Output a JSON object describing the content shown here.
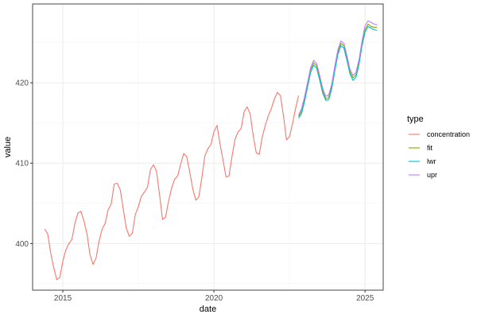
{
  "chart_data": {
    "type": "line",
    "title": "",
    "xlabel": "date",
    "ylabel": "value",
    "xlim": [
      2014.0,
      2025.6
    ],
    "ylim": [
      394.2,
      429.8
    ],
    "x_ticks": [
      2015,
      2020,
      2025
    ],
    "x_tick_labels": [
      "2015",
      "2020",
      "2025"
    ],
    "y_ticks": [
      400,
      410,
      420
    ],
    "y_tick_labels": [
      "400",
      "410",
      "420"
    ],
    "grid": true,
    "legend": {
      "title": "type",
      "position": "right"
    },
    "series": [
      {
        "name": "concentration",
        "color": "#F8766D",
        "x": [
          2014.4,
          2014.5,
          2014.6,
          2014.7,
          2014.8,
          2014.9,
          2015.0,
          2015.1,
          2015.2,
          2015.3,
          2015.4,
          2015.5,
          2015.6,
          2015.7,
          2015.8,
          2015.9,
          2016.0,
          2016.1,
          2016.2,
          2016.3,
          2016.4,
          2016.5,
          2016.6,
          2016.7,
          2016.8,
          2016.9,
          2017.0,
          2017.1,
          2017.2,
          2017.3,
          2017.4,
          2017.5,
          2017.6,
          2017.7,
          2017.8,
          2017.9,
          2018.0,
          2018.1,
          2018.2,
          2018.3,
          2018.4,
          2018.5,
          2018.6,
          2018.7,
          2018.8,
          2018.9,
          2019.0,
          2019.1,
          2019.2,
          2019.3,
          2019.4,
          2019.5,
          2019.6,
          2019.7,
          2019.8,
          2019.9,
          2020.0,
          2020.1,
          2020.2,
          2020.3,
          2020.4,
          2020.5,
          2020.6,
          2020.7,
          2020.8,
          2020.9,
          2021.0,
          2021.1,
          2021.2,
          2021.3,
          2021.4,
          2021.5,
          2021.6,
          2021.7,
          2021.8,
          2021.9,
          2022.0,
          2022.1,
          2022.2,
          2022.3,
          2022.4,
          2022.5,
          2022.6,
          2022.7,
          2022.8
        ],
        "values": [
          401.8,
          401.2,
          398.8,
          397.0,
          395.5,
          395.8,
          397.8,
          399.2,
          400.0,
          400.5,
          402.5,
          403.8,
          404.0,
          402.8,
          401.2,
          398.6,
          397.4,
          398.2,
          400.3,
          401.8,
          402.5,
          404.2,
          404.9,
          407.4,
          407.5,
          406.7,
          404.3,
          401.9,
          400.9,
          401.3,
          403.6,
          404.6,
          405.9,
          406.4,
          407.0,
          409.2,
          409.8,
          409.0,
          406.1,
          403.0,
          403.3,
          405.3,
          406.9,
          408.0,
          408.4,
          409.9,
          411.2,
          410.8,
          408.9,
          406.8,
          405.4,
          405.8,
          408.2,
          410.9,
          411.8,
          412.3,
          413.9,
          414.7,
          412.4,
          410.4,
          408.3,
          408.4,
          410.9,
          413.0,
          413.9,
          414.3,
          416.4,
          417.0,
          416.1,
          413.4,
          411.3,
          411.1,
          413.3,
          414.7,
          415.9,
          416.8,
          418.0,
          418.8,
          418.4,
          415.9,
          412.9,
          413.3,
          414.9,
          416.8,
          418.4
        ]
      },
      {
        "name": "fit",
        "color": "#7CAE00",
        "x": [
          2022.8,
          2022.9,
          2023.0,
          2023.1,
          2023.2,
          2023.3,
          2023.4,
          2023.5,
          2023.6,
          2023.7,
          2023.8,
          2023.9,
          2024.0,
          2024.1,
          2024.2,
          2024.3,
          2024.4,
          2024.5,
          2024.6,
          2024.7,
          2024.8,
          2024.9,
          2025.0,
          2025.1,
          2025.2,
          2025.3,
          2025.4
        ],
        "values": [
          415.8,
          416.5,
          418.0,
          419.8,
          421.6,
          422.5,
          422.1,
          420.6,
          419.0,
          418.0,
          418.2,
          419.6,
          421.8,
          423.8,
          424.9,
          424.6,
          423.1,
          421.4,
          420.6,
          421.0,
          422.6,
          424.9,
          426.6,
          427.3,
          427.0,
          426.9,
          426.9
        ]
      },
      {
        "name": "lwr",
        "color": "#00BFC4",
        "x": [
          2022.8,
          2022.9,
          2023.0,
          2023.1,
          2023.2,
          2023.3,
          2023.4,
          2023.5,
          2023.6,
          2023.7,
          2023.8,
          2023.9,
          2024.0,
          2024.1,
          2024.2,
          2024.3,
          2024.4,
          2024.5,
          2024.6,
          2024.7,
          2024.8,
          2024.9,
          2025.0,
          2025.1,
          2025.2,
          2025.3,
          2025.4
        ],
        "values": [
          415.6,
          416.2,
          417.7,
          419.5,
          421.3,
          422.2,
          421.8,
          420.3,
          418.7,
          417.8,
          417.9,
          419.3,
          421.5,
          423.5,
          424.6,
          424.3,
          422.8,
          421.1,
          420.3,
          420.7,
          422.3,
          424.6,
          426.3,
          427.0,
          426.8,
          426.6,
          426.5
        ]
      },
      {
        "name": "upr",
        "color": "#C77CFF",
        "x": [
          2022.8,
          2022.9,
          2023.0,
          2023.1,
          2023.2,
          2023.3,
          2023.4,
          2023.5,
          2023.6,
          2023.7,
          2023.8,
          2023.9,
          2024.0,
          2024.1,
          2024.2,
          2024.3,
          2024.4,
          2024.5,
          2024.6,
          2024.7,
          2024.8,
          2024.9,
          2025.0,
          2025.1,
          2025.2,
          2025.3,
          2025.4
        ],
        "values": [
          416.0,
          416.8,
          418.3,
          420.1,
          421.9,
          422.8,
          422.4,
          420.9,
          419.3,
          418.3,
          418.5,
          419.9,
          422.1,
          424.1,
          425.2,
          424.9,
          423.4,
          421.7,
          420.9,
          421.3,
          422.9,
          425.2,
          427.1,
          427.7,
          427.5,
          427.3,
          427.2
        ]
      }
    ]
  }
}
